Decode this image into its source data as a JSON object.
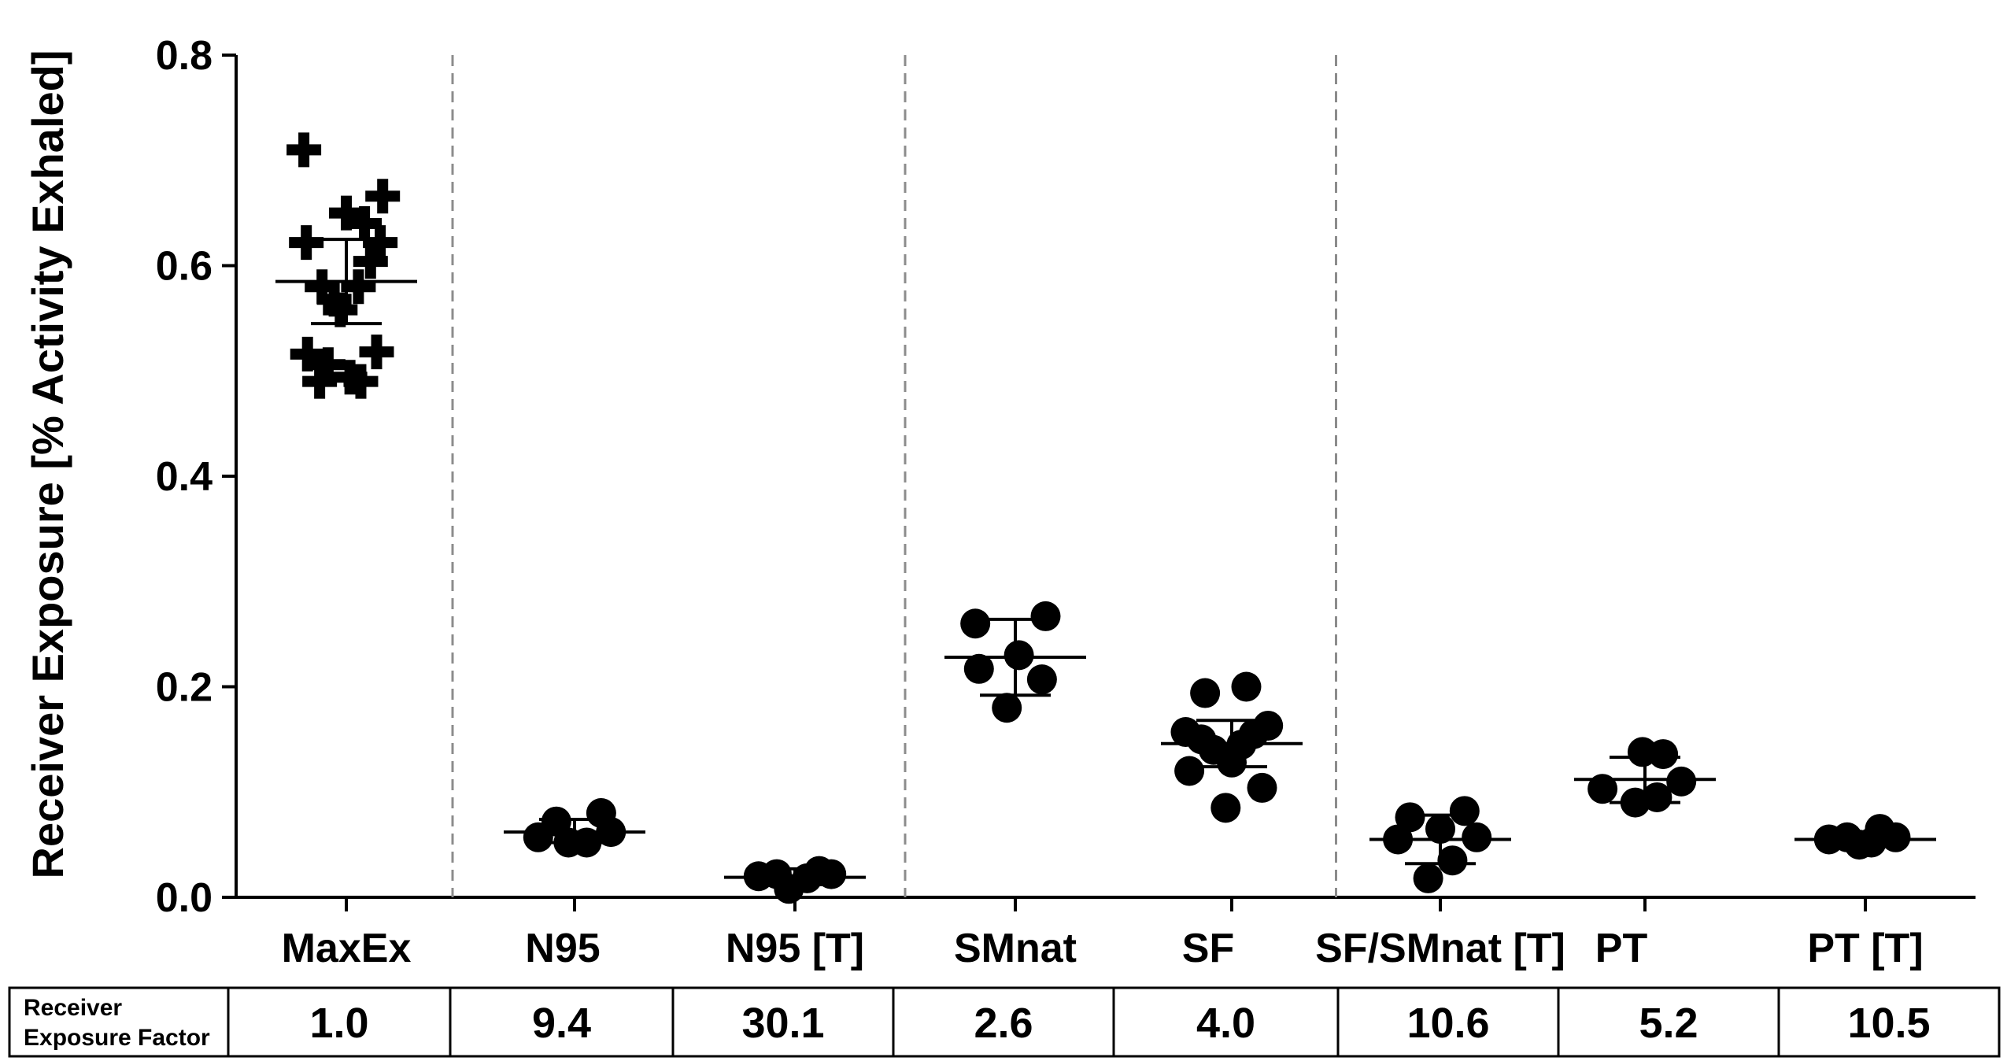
{
  "chart_data": {
    "type": "scatter",
    "title": "",
    "xlabel": "",
    "ylabel": "Receiver Exposure [% Activity Exhaled]",
    "ylim": [
      0,
      0.8
    ],
    "yticks": [
      "0.0",
      "0.2",
      "0.4",
      "0.6",
      "0.8"
    ],
    "grid": false,
    "categories": [
      "MaxEx",
      "N95",
      "N95 [T]",
      "SMnat",
      "SF",
      "SF/SMnat [T]",
      "PT",
      "PT [T]"
    ],
    "separator_after_index": [
      0,
      2,
      4
    ],
    "series": [
      {
        "category": "MaxEx",
        "marker": "plus",
        "mean": 0.585,
        "sd_low": 0.545,
        "sd_high": 0.625,
        "points": [
          {
            "dx": -0.35,
            "y": 0.71
          },
          {
            "dx": -0.33,
            "y": 0.622
          },
          {
            "dx": -0.32,
            "y": 0.516
          },
          {
            "dx": -0.22,
            "y": 0.49
          },
          {
            "dx": -0.2,
            "y": 0.58
          },
          {
            "dx": -0.15,
            "y": 0.506
          },
          {
            "dx": -0.1,
            "y": 0.568
          },
          {
            "dx": -0.05,
            "y": 0.558
          },
          {
            "dx": 0.0,
            "y": 0.65
          },
          {
            "dx": 0.03,
            "y": 0.494
          },
          {
            "dx": 0.1,
            "y": 0.58
          },
          {
            "dx": 0.12,
            "y": 0.49
          },
          {
            "dx": 0.15,
            "y": 0.64
          },
          {
            "dx": 0.2,
            "y": 0.604
          },
          {
            "dx": 0.25,
            "y": 0.518
          },
          {
            "dx": 0.28,
            "y": 0.622
          },
          {
            "dx": 0.3,
            "y": 0.666
          }
        ]
      },
      {
        "category": "N95",
        "marker": "circle",
        "mean": 0.062,
        "sd_low": 0.052,
        "sd_high": 0.074,
        "points": [
          {
            "dx": -0.3,
            "y": 0.057
          },
          {
            "dx": -0.15,
            "y": 0.072
          },
          {
            "dx": -0.05,
            "y": 0.052
          },
          {
            "dx": 0.1,
            "y": 0.052
          },
          {
            "dx": 0.22,
            "y": 0.08
          },
          {
            "dx": 0.3,
            "y": 0.062
          }
        ]
      },
      {
        "category": "N95 [T]",
        "marker": "circle",
        "mean": 0.019,
        "sd_low": 0.012,
        "sd_high": 0.027,
        "points": [
          {
            "dx": -0.3,
            "y": 0.02
          },
          {
            "dx": -0.15,
            "y": 0.022
          },
          {
            "dx": -0.05,
            "y": 0.008
          },
          {
            "dx": 0.1,
            "y": 0.018
          },
          {
            "dx": 0.2,
            "y": 0.025
          },
          {
            "dx": 0.3,
            "y": 0.022
          }
        ]
      },
      {
        "category": "SMnat",
        "marker": "circle",
        "mean": 0.228,
        "sd_low": 0.192,
        "sd_high": 0.264,
        "points": [
          {
            "dx": -0.33,
            "y": 0.26
          },
          {
            "dx": -0.3,
            "y": 0.217
          },
          {
            "dx": -0.07,
            "y": 0.18
          },
          {
            "dx": 0.03,
            "y": 0.23
          },
          {
            "dx": 0.22,
            "y": 0.207
          },
          {
            "dx": 0.25,
            "y": 0.267
          }
        ]
      },
      {
        "category": "SF",
        "marker": "circle",
        "mean": 0.146,
        "sd_low": 0.124,
        "sd_high": 0.168,
        "points": [
          {
            "dx": -0.38,
            "y": 0.157
          },
          {
            "dx": -0.35,
            "y": 0.12
          },
          {
            "dx": -0.25,
            "y": 0.15
          },
          {
            "dx": -0.22,
            "y": 0.194
          },
          {
            "dx": -0.15,
            "y": 0.14
          },
          {
            "dx": -0.05,
            "y": 0.085
          },
          {
            "dx": 0.0,
            "y": 0.128
          },
          {
            "dx": 0.08,
            "y": 0.145
          },
          {
            "dx": 0.12,
            "y": 0.2
          },
          {
            "dx": 0.18,
            "y": 0.155
          },
          {
            "dx": 0.25,
            "y": 0.104
          },
          {
            "dx": 0.3,
            "y": 0.163
          }
        ]
      },
      {
        "category": "SF/SMnat [T]",
        "marker": "circle",
        "mean": 0.055,
        "sd_low": 0.032,
        "sd_high": 0.078,
        "points": [
          {
            "dx": -0.35,
            "y": 0.055
          },
          {
            "dx": -0.25,
            "y": 0.076
          },
          {
            "dx": -0.1,
            "y": 0.018
          },
          {
            "dx": 0.0,
            "y": 0.065
          },
          {
            "dx": 0.1,
            "y": 0.035
          },
          {
            "dx": 0.2,
            "y": 0.082
          },
          {
            "dx": 0.3,
            "y": 0.057
          }
        ]
      },
      {
        "category": "PT",
        "marker": "circle",
        "mean": 0.112,
        "sd_low": 0.09,
        "sd_high": 0.133,
        "points": [
          {
            "dx": -0.35,
            "y": 0.103
          },
          {
            "dx": -0.08,
            "y": 0.09
          },
          {
            "dx": -0.02,
            "y": 0.138
          },
          {
            "dx": 0.1,
            "y": 0.095
          },
          {
            "dx": 0.15,
            "y": 0.136
          },
          {
            "dx": 0.3,
            "y": 0.11
          }
        ]
      },
      {
        "category": "PT [T]",
        "marker": "circle",
        "mean": 0.055,
        "sd_low": 0.05,
        "sd_high": 0.062,
        "points": [
          {
            "dx": -0.3,
            "y": 0.055
          },
          {
            "dx": -0.15,
            "y": 0.057
          },
          {
            "dx": -0.05,
            "y": 0.05
          },
          {
            "dx": 0.05,
            "y": 0.052
          },
          {
            "dx": 0.12,
            "y": 0.065
          },
          {
            "dx": 0.25,
            "y": 0.057
          }
        ]
      }
    ]
  },
  "factor_table": {
    "header": [
      "Receiver",
      "Exposure Factor"
    ],
    "values": [
      "1.0",
      "9.4",
      "30.1",
      "2.6",
      "4.0",
      "10.6",
      "5.2",
      "10.5"
    ]
  },
  "colors": {
    "ink": "#000000",
    "separator": "#8c8c8c"
  }
}
